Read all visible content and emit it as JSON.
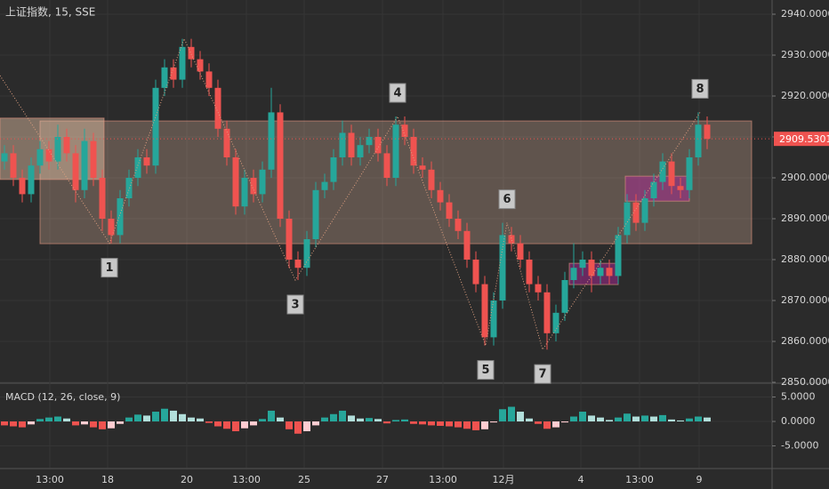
{
  "chart_data": [
    {
      "type": "candlestick",
      "title": "上证指数, 15, SSE",
      "up_color": "#26a69a",
      "down_color": "#ef5350",
      "open": [
        2904,
        2906,
        2900,
        2896,
        2903,
        2907,
        2904,
        2910,
        2906,
        2897,
        2909,
        2900,
        2890,
        2886,
        2895,
        2900,
        2905,
        2903,
        2922,
        2927,
        2924,
        2932,
        2929,
        2926,
        2922,
        2912,
        2905,
        2893,
        2900,
        2896,
        2902,
        2916,
        2890,
        2880,
        2878,
        2885,
        2897,
        2899,
        2905,
        2911,
        2905,
        2908,
        2910,
        2906,
        2900,
        2913,
        2910,
        2903,
        2902,
        2897,
        2894,
        2890,
        2887,
        2880,
        2874,
        2861,
        2870,
        2886,
        2884,
        2880,
        2874,
        2872,
        2862,
        2867,
        2875,
        2878,
        2880,
        2876,
        2878,
        2876,
        2886,
        2894,
        2889,
        2895,
        2899,
        2904,
        2898,
        2897,
        2905,
        2913
      ],
      "high": [
        2908,
        2908,
        2902,
        2905,
        2909,
        2909,
        2913,
        2912,
        2908,
        2912,
        2911,
        2902,
        2892,
        2897,
        2902,
        2907,
        2907,
        2924,
        2929,
        2929,
        2934,
        2934,
        2931,
        2928,
        2924,
        2914,
        2907,
        2902,
        2902,
        2904,
        2922,
        2918,
        2892,
        2882,
        2887,
        2899,
        2901,
        2907,
        2914,
        2913,
        2910,
        2912,
        2912,
        2908,
        2915,
        2915,
        2912,
        2905,
        2904,
        2899,
        2896,
        2892,
        2889,
        2882,
        2876,
        2872,
        2889,
        2888,
        2886,
        2882,
        2876,
        2874,
        2869,
        2877,
        2884,
        2882,
        2882,
        2880,
        2880,
        2888,
        2896,
        2896,
        2897,
        2901,
        2906,
        2906,
        2900,
        2907,
        2916,
        2915
      ],
      "low": [
        2902,
        2898,
        2894,
        2894,
        2901,
        2902,
        2902,
        2904,
        2894,
        2895,
        2898,
        2887,
        2884,
        2884,
        2893,
        2898,
        2901,
        2901,
        2920,
        2922,
        2922,
        2927,
        2924,
        2920,
        2910,
        2903,
        2891,
        2891,
        2894,
        2894,
        2900,
        2888,
        2878,
        2875,
        2876,
        2883,
        2895,
        2897,
        2903,
        2903,
        2903,
        2906,
        2904,
        2898,
        2898,
        2908,
        2901,
        2900,
        2895,
        2892,
        2888,
        2885,
        2878,
        2872,
        2859,
        2859,
        2868,
        2882,
        2878,
        2872,
        2870,
        2858,
        2860,
        2865,
        2873,
        2876,
        2872,
        2874,
        2874,
        2874,
        2884,
        2887,
        2887,
        2893,
        2897,
        2896,
        2895,
        2895,
        2903,
        2907
      ],
      "close": [
        2906,
        2900,
        2896,
        2903,
        2907,
        2904,
        2910,
        2906,
        2897,
        2909,
        2900,
        2890,
        2886,
        2895,
        2900,
        2905,
        2903,
        2922,
        2927,
        2924,
        2932,
        2929,
        2926,
        2922,
        2912,
        2905,
        2893,
        2900,
        2896,
        2902,
        2916,
        2890,
        2880,
        2878,
        2885,
        2897,
        2899,
        2905,
        2911,
        2905,
        2908,
        2910,
        2906,
        2900,
        2913,
        2910,
        2903,
        2902,
        2897,
        2894,
        2890,
        2887,
        2880,
        2874,
        2861,
        2870,
        2886,
        2884,
        2880,
        2874,
        2872,
        2862,
        2867,
        2875,
        2878,
        2880,
        2876,
        2878,
        2876,
        2886,
        2894,
        2889,
        2895,
        2899,
        2904,
        2898,
        2897,
        2905,
        2913,
        2909.5301
      ],
      "last_price": 2909.5301,
      "xlim": [
        -0.5,
        86.3
      ],
      "xticks": [
        {
          "value": 5.1,
          "label": "13:00"
        },
        {
          "value": 11.6,
          "label": "18"
        },
        {
          "value": 20.5,
          "label": "20"
        },
        {
          "value": 27.2,
          "label": "13:00"
        },
        {
          "value": 33.7,
          "label": "25"
        },
        {
          "value": 42.5,
          "label": "27"
        },
        {
          "value": 49.3,
          "label": "13:00"
        },
        {
          "value": 56.1,
          "label": "12月"
        },
        {
          "value": 64.8,
          "label": "4"
        },
        {
          "value": 71.4,
          "label": "13:00"
        },
        {
          "value": 78.1,
          "label": "9"
        }
      ],
      "ylim": [
        2850,
        2943.48
      ],
      "yticks": [
        {
          "value": 2850,
          "label": "2850.0000"
        },
        {
          "value": 2860,
          "label": "2860.0000"
        },
        {
          "value": 2870,
          "label": "2870.0000"
        },
        {
          "value": 2880,
          "label": "2880.0000"
        },
        {
          "value": 2890,
          "label": "2890.0000"
        },
        {
          "value": 2900,
          "label": "2900.0000"
        },
        {
          "value": 2910,
          "label": "2910.0000"
        },
        {
          "value": 2920,
          "label": "2920.0000"
        },
        {
          "value": 2930,
          "label": "2930.0000"
        },
        {
          "value": 2940,
          "label": "2940.0000"
        }
      ],
      "zones": [
        {
          "from": 4,
          "to": 84,
          "top": 2913.9,
          "bottom": 2883.9,
          "color": "rgba(205,170,150,0.33)"
        },
        {
          "from": -0.5,
          "to": 11.2,
          "top": 2914.6,
          "bottom": 2899.6,
          "color": "rgba(235,200,170,0.45)"
        },
        {
          "from": 69.8,
          "to": 77,
          "top": 2900.4,
          "bottom": 2894.3,
          "color": "rgba(170,40,150,0.5)"
        },
        {
          "from": 63.5,
          "to": 69,
          "top": 2879.1,
          "bottom": 2873.9,
          "color": "rgba(170,40,150,0.5)"
        }
      ],
      "zigzag": [
        {
          "x": -0.5,
          "price": 2925
        },
        {
          "x": 11.8,
          "price": 2884,
          "label": "1"
        },
        {
          "x": 20.2,
          "price": 2934
        },
        {
          "x": 32.7,
          "price": 2875,
          "label": "3"
        },
        {
          "x": 44.2,
          "price": 2915,
          "label": "4"
        },
        {
          "x": 54.1,
          "price": 2859,
          "label": "5"
        },
        {
          "x": 56.5,
          "price": 2889,
          "label": "6"
        },
        {
          "x": 60.5,
          "price": 2858,
          "label": "7"
        },
        {
          "x": 78.2,
          "price": 2916,
          "label": "8"
        }
      ]
    },
    {
      "type": "bar",
      "title": "MACD (12, 26, close, 9)",
      "values": [
        -0.8,
        -1,
        -1.2,
        -0.6,
        0.5,
        0.8,
        1,
        0.6,
        -0.8,
        -0.6,
        -1.2,
        -1.6,
        -1.4,
        -0.5,
        0.8,
        1.4,
        1.2,
        2,
        2.6,
        2.2,
        1.5,
        0.8,
        0.6,
        -0.3,
        -1,
        -1.5,
        -2,
        -1.4,
        -0.8,
        0.5,
        2.2,
        0.8,
        -1.6,
        -2.5,
        -2,
        -0.8,
        0.8,
        1.5,
        2.2,
        1.2,
        0.6,
        0.7,
        0.5,
        -0.4,
        0.3,
        0.4,
        -0.5,
        -0.6,
        -0.8,
        -0.9,
        -1,
        -1.2,
        -1.5,
        -1.8,
        -1.6,
        -0.2,
        2.5,
        3,
        2,
        0.6,
        -0.5,
        -1.5,
        -1.2,
        -0.2,
        1,
        2,
        1.2,
        0.8,
        0.3,
        0.8,
        1.6,
        1,
        1.2,
        1,
        1.3,
        0.4,
        0.2,
        0.6,
        1,
        0.8
      ],
      "palette": [
        "#26a69a",
        "#b2dfdb",
        "#ef5350",
        "#ffcdd2"
      ],
      "ylim": [
        -9.45,
        7.64
      ],
      "yticks": [
        {
          "value": -5,
          "label": "-5.0000"
        },
        {
          "value": 0,
          "label": "0.0000"
        },
        {
          "value": 5,
          "label": "5.0000"
        }
      ]
    }
  ]
}
